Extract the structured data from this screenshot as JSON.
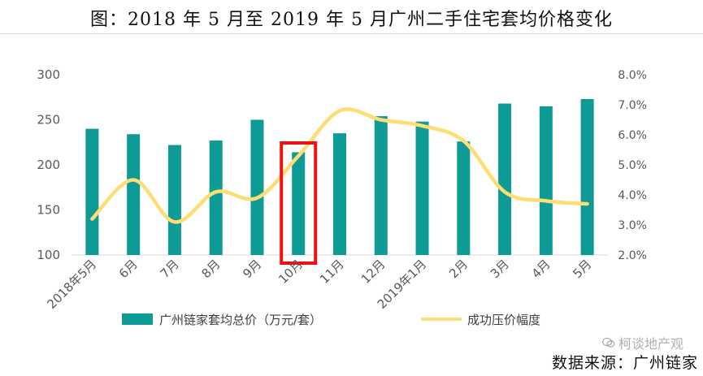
{
  "title": "图：2018 年 5 月至 2019 年 5 月广州二手住宅套均价格变化",
  "source": "数据来源：广州链家",
  "watermark": "柯谈地产观",
  "colors": {
    "bar": "#0e9a95",
    "line": "#ffdd73",
    "highlight": "#ee1111"
  },
  "chart_data": {
    "type": "bar",
    "title": "图：2018 年 5 月至 2019 年 5 月广州二手住宅套均价格变化",
    "categories": [
      "2018年5月",
      "6月",
      "7月",
      "8月",
      "9月",
      "10月",
      "11月",
      "12月",
      "2019年1月",
      "2月",
      "3月",
      "4月",
      "5月"
    ],
    "series": [
      {
        "name": "广州链家套均总价（万元/套）",
        "type": "bar",
        "axis": "left",
        "values": [
          240,
          234,
          222,
          227,
          250,
          214,
          235,
          254,
          248,
          226,
          268,
          265,
          273
        ]
      },
      {
        "name": "成功压价幅度",
        "type": "line",
        "axis": "right",
        "smooth": true,
        "values": [
          3.2,
          4.5,
          3.1,
          4.1,
          3.9,
          5.3,
          6.8,
          6.5,
          6.3,
          5.8,
          4.1,
          3.8,
          3.7
        ]
      }
    ],
    "ylim_left": [
      100,
      300
    ],
    "yticks_left": [
      "100",
      "150",
      "200",
      "250",
      "300"
    ],
    "ylim_right": [
      2.0,
      8.0
    ],
    "yticks_right": [
      "2.0%",
      "3.0%",
      "4.0%",
      "5.0%",
      "6.0%",
      "7.0%",
      "8.0%"
    ],
    "highlight_category": "10月",
    "grid": false,
    "legend_position": "bottom"
  }
}
